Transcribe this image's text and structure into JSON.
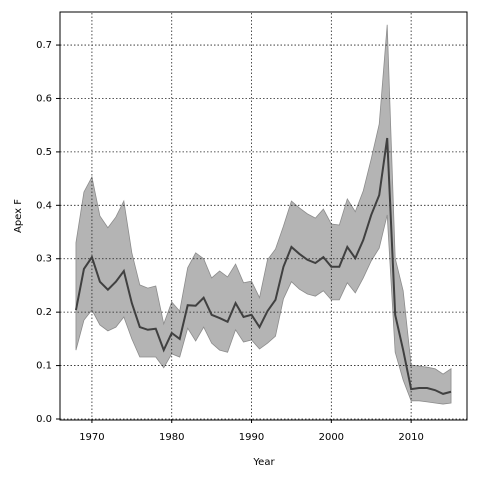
{
  "chart_data": {
    "type": "line",
    "xlabel": "Year",
    "ylabel": "Apex F",
    "x": [
      1968,
      1969,
      1970,
      1971,
      1972,
      1973,
      1974,
      1975,
      1976,
      1977,
      1978,
      1979,
      1980,
      1981,
      1982,
      1983,
      1984,
      1985,
      1986,
      1987,
      1988,
      1989,
      1990,
      1991,
      1992,
      1993,
      1994,
      1995,
      1996,
      1997,
      1998,
      1999,
      2000,
      2001,
      2002,
      2003,
      2004,
      2005,
      2006,
      2007,
      2008,
      2009,
      2010,
      2011,
      2012,
      2013,
      2014,
      2015
    ],
    "values": [
      0.204,
      0.281,
      0.303,
      0.257,
      0.242,
      0.257,
      0.277,
      0.217,
      0.172,
      0.167,
      0.169,
      0.129,
      0.161,
      0.15,
      0.213,
      0.212,
      0.227,
      0.195,
      0.189,
      0.182,
      0.217,
      0.191,
      0.195,
      0.172,
      0.202,
      0.223,
      0.285,
      0.322,
      0.309,
      0.298,
      0.292,
      0.303,
      0.285,
      0.285,
      0.322,
      0.301,
      0.335,
      0.382,
      0.419,
      0.526,
      0.195,
      0.129,
      0.056,
      0.058,
      0.058,
      0.054,
      0.047,
      0.051
    ],
    "band": {
      "upper": [
        0.33,
        0.425,
        0.453,
        0.38,
        0.358,
        0.378,
        0.408,
        0.311,
        0.251,
        0.245,
        0.249,
        0.178,
        0.219,
        0.202,
        0.283,
        0.311,
        0.3,
        0.264,
        0.277,
        0.266,
        0.29,
        0.255,
        0.258,
        0.227,
        0.298,
        0.318,
        0.361,
        0.408,
        0.395,
        0.384,
        0.376,
        0.393,
        0.365,
        0.363,
        0.412,
        0.388,
        0.427,
        0.487,
        0.552,
        0.738,
        0.301,
        0.24,
        0.101,
        0.099,
        0.097,
        0.094,
        0.084,
        0.094
      ],
      "lower": [
        0.129,
        0.185,
        0.204,
        0.176,
        0.165,
        0.172,
        0.191,
        0.15,
        0.116,
        0.116,
        0.116,
        0.096,
        0.122,
        0.116,
        0.17,
        0.146,
        0.172,
        0.142,
        0.129,
        0.125,
        0.167,
        0.144,
        0.148,
        0.131,
        0.142,
        0.155,
        0.225,
        0.257,
        0.243,
        0.234,
        0.23,
        0.24,
        0.223,
        0.223,
        0.255,
        0.236,
        0.264,
        0.296,
        0.32,
        0.382,
        0.125,
        0.073,
        0.034,
        0.034,
        0.032,
        0.03,
        0.028,
        0.03
      ],
      "color": "#b4b4b4",
      "edge_color": "#8c8c8c"
    },
    "color": "#404040",
    "xlim": [
      1966,
      2017
    ],
    "xticks": [
      1970,
      1980,
      1990,
      2000,
      2010
    ],
    "ylim": [
      0,
      0.76
    ],
    "yticks": [
      {
        "value": 0,
        "label": "0.0"
      },
      0.1,
      0.2,
      0.3,
      0.4,
      0.5,
      0.6,
      0.7
    ],
    "grid": true
  }
}
